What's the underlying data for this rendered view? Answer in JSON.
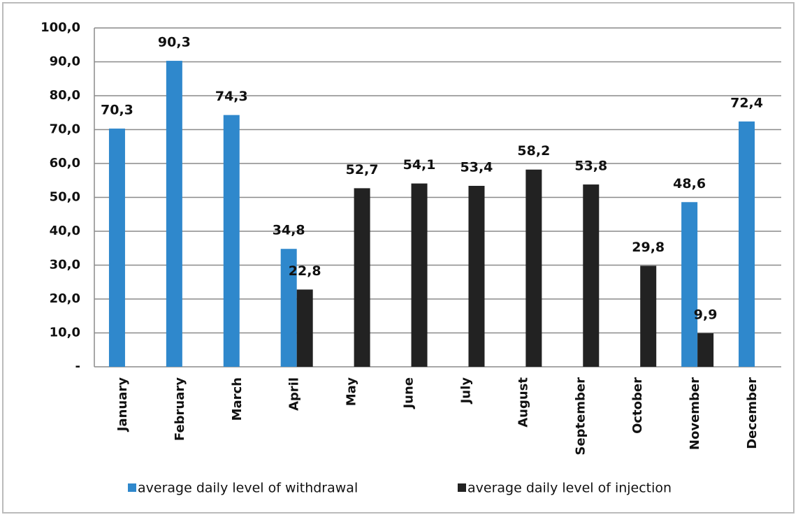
{
  "chart_data": {
    "type": "bar",
    "categories": [
      "January",
      "February",
      "March",
      "April",
      "May",
      "June",
      "July",
      "August",
      "September",
      "October",
      "November",
      "December"
    ],
    "series": [
      {
        "name": "average daily level of withdrawal",
        "color": "#2f88cc",
        "values": [
          70.3,
          90.3,
          74.3,
          34.8,
          null,
          null,
          null,
          null,
          null,
          null,
          48.6,
          72.4
        ],
        "value_labels": [
          "70,3",
          "90,3",
          "74,3",
          "34,8",
          null,
          null,
          null,
          null,
          null,
          null,
          "48,6",
          "72,4"
        ]
      },
      {
        "name": "average daily level of injection",
        "color": "#222222",
        "values": [
          null,
          null,
          null,
          22.8,
          52.7,
          54.1,
          53.4,
          58.2,
          53.8,
          29.8,
          9.9,
          null
        ],
        "value_labels": [
          null,
          null,
          null,
          "22,8",
          "52,7",
          "54,1",
          "53,4",
          "58,2",
          "53,8",
          "29,8",
          "9,9",
          null
        ]
      }
    ],
    "ylim": [
      0,
      100
    ],
    "yticks": [
      {
        "value": 0,
        "label": "-"
      },
      {
        "value": 10,
        "label": "10,0"
      },
      {
        "value": 20,
        "label": "20,0"
      },
      {
        "value": 30,
        "label": "30,0"
      },
      {
        "value": 40,
        "label": "40,0"
      },
      {
        "value": 50,
        "label": "50,0"
      },
      {
        "value": 60,
        "label": "60,0"
      },
      {
        "value": 70,
        "label": "70,0"
      },
      {
        "value": 80,
        "label": "80,0"
      },
      {
        "value": 90,
        "label": "90,0"
      },
      {
        "value": 100,
        "label": "100,0"
      }
    ],
    "grid": true,
    "legend": "bottom"
  }
}
